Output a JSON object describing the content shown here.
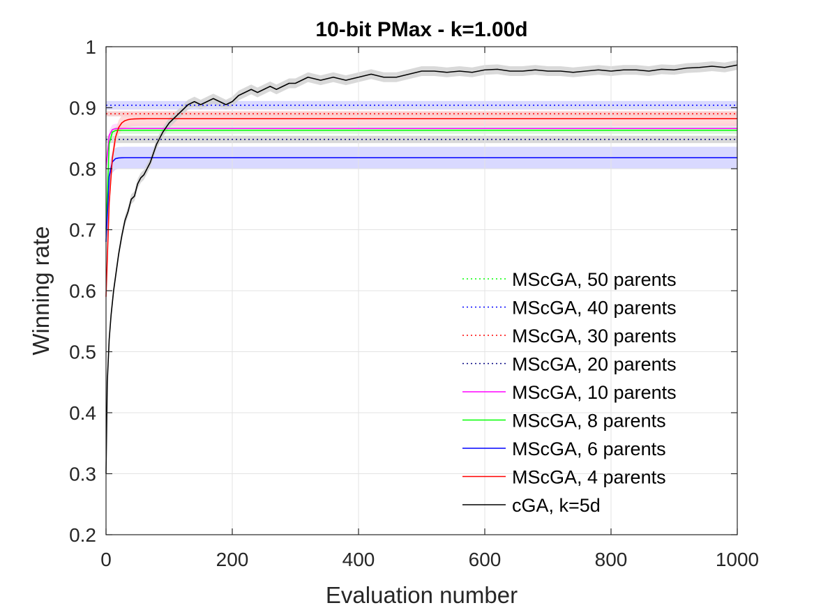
{
  "chart_data": {
    "type": "line",
    "title": "10-bit PMax - k=1.00d",
    "xlabel": "Evaluation number",
    "ylabel": "Winning rate",
    "xlim": [
      0,
      1000
    ],
    "ylim": [
      0.2,
      1
    ],
    "xticks": [
      0,
      200,
      400,
      600,
      800,
      1000
    ],
    "xtick_labels": [
      "0",
      "200",
      "400",
      "600",
      "800",
      "1000"
    ],
    "yticks": [
      0.2,
      0.3,
      0.4,
      0.5,
      0.6,
      0.7,
      0.8,
      0.9,
      1
    ],
    "ytick_labels": [
      "0.2",
      "0.3",
      "0.4",
      "0.5",
      "0.6",
      "0.7",
      "0.8",
      "0.9",
      "1"
    ],
    "grid": true,
    "legend_position": "lower-right",
    "series": [
      {
        "name": "MScGA, 50 parents",
        "color": "#00ff00",
        "style": "dotted",
        "band_color": "#cccccc",
        "start": 0.89,
        "plateau": 0.89,
        "rise_rate": 1.0,
        "band_half": 0.004
      },
      {
        "name": "MScGA, 40 parents",
        "color": "#0000ff",
        "style": "dotted",
        "band_color": "#ccccff",
        "start": 0.904,
        "plateau": 0.904,
        "rise_rate": 1.0,
        "band_half": 0.007
      },
      {
        "name": "MScGA, 30 parents",
        "color": "#ff0000",
        "style": "dotted",
        "band_color": "#ffcccc",
        "start": 0.89,
        "plateau": 0.89,
        "rise_rate": 1.0,
        "band_half": 0.004
      },
      {
        "name": "MScGA, 20 parents",
        "color": "#000080",
        "style": "dotted",
        "band_color": "#cccccc",
        "start": 0.848,
        "plateau": 0.848,
        "rise_rate": 1.0,
        "band_half": 0.006
      },
      {
        "name": "MScGA, 10 parents",
        "color": "#ff00ff",
        "style": "solid",
        "band_color": "#ffccff",
        "start": 0.8,
        "plateau": 0.866,
        "rise_rate": 0.35,
        "band_half": 0.008
      },
      {
        "name": "MScGA, 8 parents",
        "color": "#00ff00",
        "style": "solid",
        "band_color": "#ccffcc",
        "start": 0.7,
        "plateau": 0.863,
        "rise_rate": 0.4,
        "band_half": 0.006
      },
      {
        "name": "MScGA, 6 parents",
        "color": "#0000ff",
        "style": "solid",
        "band_color": "#ccccff",
        "start": 0.68,
        "plateau": 0.818,
        "rise_rate": 0.3,
        "band_half": 0.018
      },
      {
        "name": "MScGA, 4 parents",
        "color": "#ff0000",
        "style": "solid",
        "band_color": "#ffcccc",
        "start": 0.59,
        "plateau": 0.882,
        "rise_rate": 0.15,
        "band_half": 0.012
      },
      {
        "name": "cGA, k=5d",
        "color": "#000000",
        "style": "solid",
        "band_color": "#cccccc",
        "band_half": 0.008,
        "x": [
          0,
          2,
          5,
          8,
          12,
          16,
          20,
          25,
          30,
          35,
          40,
          45,
          50,
          55,
          60,
          65,
          70,
          75,
          80,
          90,
          100,
          110,
          120,
          130,
          140,
          150,
          160,
          170,
          180,
          190,
          200,
          210,
          220,
          230,
          240,
          250,
          260,
          270,
          280,
          290,
          300,
          320,
          340,
          360,
          380,
          400,
          420,
          440,
          460,
          480,
          500,
          520,
          540,
          560,
          580,
          600,
          620,
          640,
          660,
          680,
          700,
          720,
          740,
          760,
          780,
          800,
          820,
          840,
          860,
          880,
          900,
          920,
          940,
          960,
          980,
          1000
        ],
        "y": [
          0.3,
          0.45,
          0.52,
          0.56,
          0.6,
          0.63,
          0.66,
          0.69,
          0.715,
          0.73,
          0.75,
          0.755,
          0.775,
          0.785,
          0.79,
          0.8,
          0.81,
          0.825,
          0.84,
          0.86,
          0.875,
          0.885,
          0.895,
          0.905,
          0.91,
          0.905,
          0.91,
          0.915,
          0.91,
          0.905,
          0.91,
          0.92,
          0.925,
          0.93,
          0.925,
          0.93,
          0.935,
          0.93,
          0.935,
          0.94,
          0.94,
          0.95,
          0.945,
          0.95,
          0.945,
          0.95,
          0.955,
          0.95,
          0.95,
          0.955,
          0.96,
          0.96,
          0.958,
          0.96,
          0.958,
          0.962,
          0.963,
          0.96,
          0.96,
          0.962,
          0.96,
          0.96,
          0.958,
          0.96,
          0.962,
          0.96,
          0.962,
          0.962,
          0.96,
          0.963,
          0.962,
          0.965,
          0.966,
          0.968,
          0.966,
          0.97
        ]
      }
    ]
  }
}
